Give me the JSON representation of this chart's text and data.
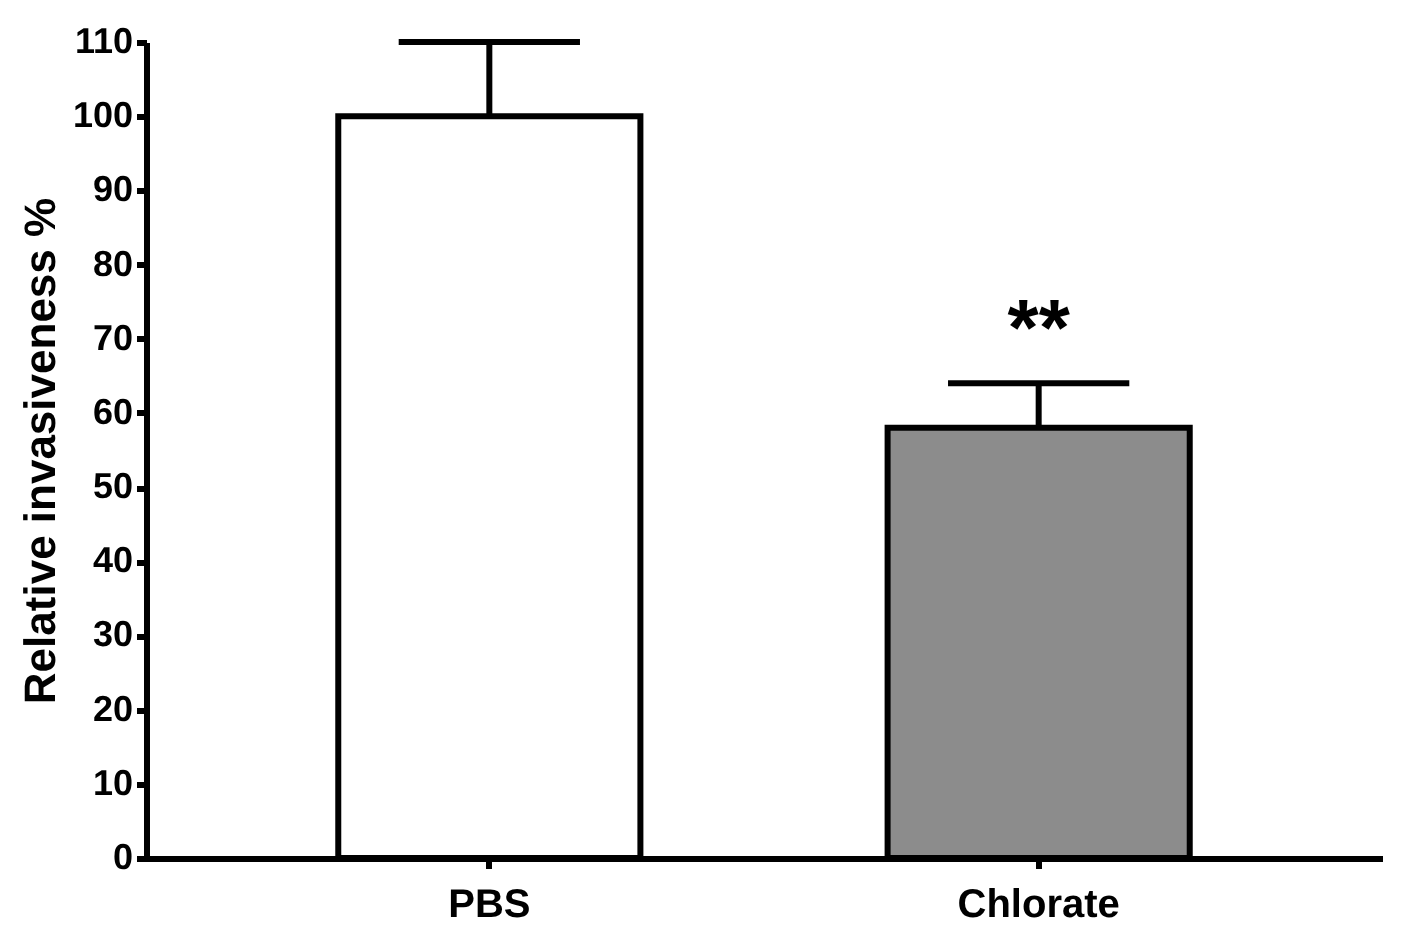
{
  "chart_data": {
    "type": "bar",
    "ylabel": "Relative invasiveness %",
    "categories": [
      "PBS",
      "Chlorate"
    ],
    "values": [
      100,
      58
    ],
    "colors": [
      "#ffffff",
      "#8c8c8c"
    ],
    "errors": [
      10,
      6
    ],
    "annotations": [
      "**"
    ],
    "ylim": [
      0,
      110
    ],
    "yticks": [
      0,
      10,
      20,
      30,
      40,
      50,
      60,
      70,
      80,
      90,
      100,
      110
    ],
    "grid": false
  }
}
